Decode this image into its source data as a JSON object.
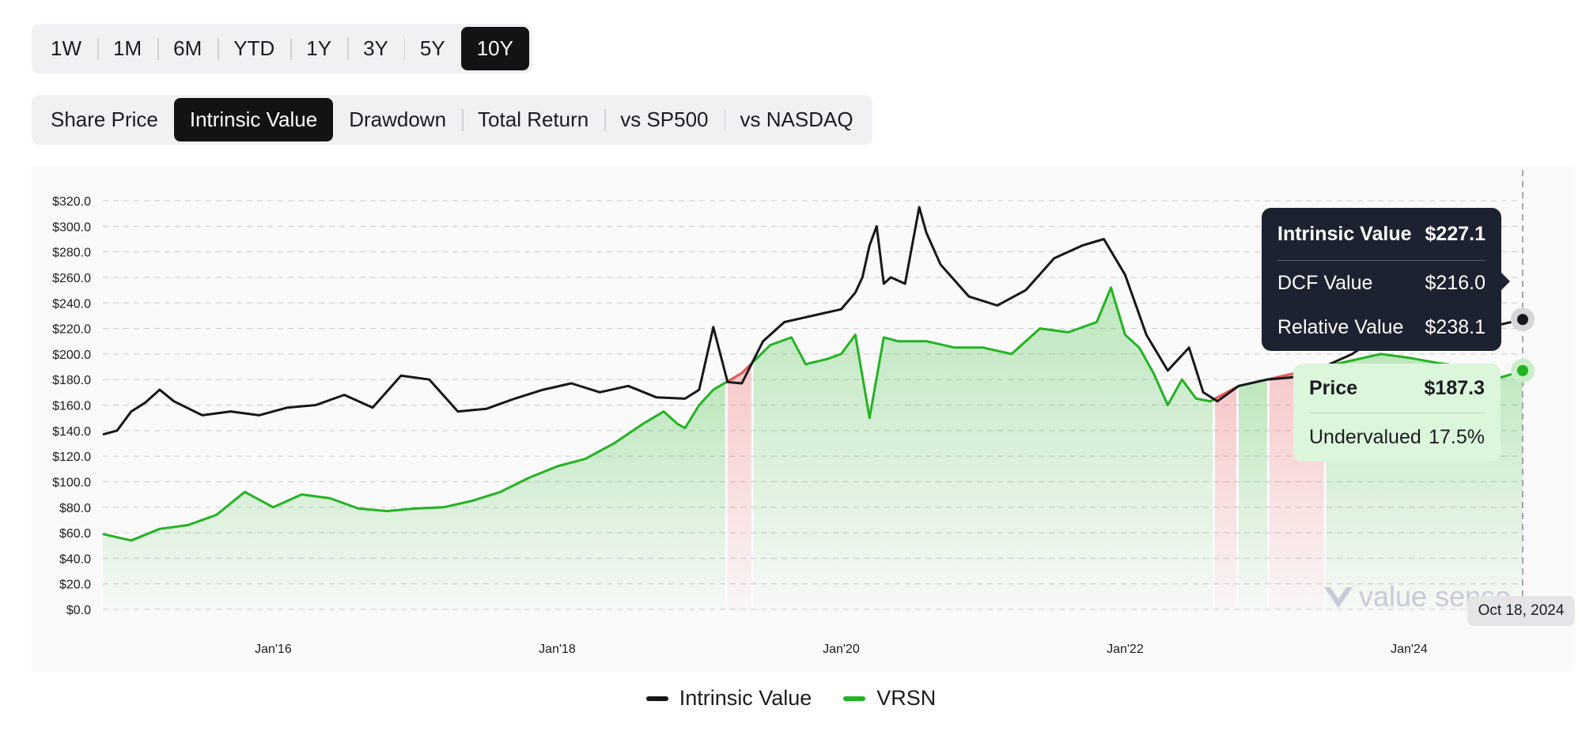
{
  "range_tabs": [
    {
      "label": "1W",
      "active": false
    },
    {
      "label": "1M",
      "active": false
    },
    {
      "label": "6M",
      "active": false
    },
    {
      "label": "YTD",
      "active": false
    },
    {
      "label": "1Y",
      "active": false
    },
    {
      "label": "3Y",
      "active": false
    },
    {
      "label": "5Y",
      "active": false
    },
    {
      "label": "10Y",
      "active": true
    }
  ],
  "view_tabs": [
    {
      "label": "Share Price",
      "active": false
    },
    {
      "label": "Intrinsic Value",
      "active": true
    },
    {
      "label": "Drawdown",
      "active": false
    },
    {
      "label": "Total Return",
      "active": false
    },
    {
      "label": "vs SP500",
      "active": false
    },
    {
      "label": "vs NASDAQ",
      "active": false
    }
  ],
  "tooltip_intrinsic": {
    "title": "Intrinsic Value",
    "title_value": "$227.1",
    "dcf_label": "DCF Value",
    "dcf_value": "$216.0",
    "relative_label": "Relative Value",
    "relative_value": "$238.1"
  },
  "tooltip_price": {
    "title": "Price",
    "title_value": "$187.3",
    "status_label": "Undervalued",
    "status_value": "17.5%"
  },
  "date_badge": "Oct 18, 2024",
  "watermark": "value sense",
  "colors": {
    "intrinsic": "#16171b",
    "price": "#22b322",
    "overvalued": "#f05555",
    "undervalued_fill": "#22b322",
    "overvalued_fill": "#f05555"
  },
  "chart_data": {
    "type": "line",
    "y_ticks": [
      "$0.0",
      "$20.0",
      "$40.0",
      "$60.0",
      "$80.0",
      "$100.0",
      "$120.0",
      "$140.0",
      "$160.0",
      "$180.0",
      "$200.0",
      "$220.0",
      "$240.0",
      "$260.0",
      "$280.0",
      "$300.0",
      "$320.0"
    ],
    "ylim": [
      0,
      320
    ],
    "x_ticks": [
      {
        "label": "Jan'16",
        "year": 2016.0
      },
      {
        "label": "Jan'18",
        "year": 2018.0
      },
      {
        "label": "Jan'20",
        "year": 2020.0
      },
      {
        "label": "Jan'22",
        "year": 2022.0
      },
      {
        "label": "Jan'24",
        "year": 2024.0
      }
    ],
    "xlim": [
      2014.8,
      2024.8
    ],
    "grid": "horizontal dashed",
    "legend": "bottom-center",
    "series": [
      {
        "name": "Intrinsic Value",
        "x": [
          2014.8,
          2014.9,
          2015.0,
          2015.1,
          2015.2,
          2015.3,
          2015.5,
          2015.7,
          2015.9,
          2016.1,
          2016.3,
          2016.5,
          2016.7,
          2016.9,
          2017.1,
          2017.3,
          2017.5,
          2017.7,
          2017.9,
          2018.1,
          2018.3,
          2018.5,
          2018.7,
          2018.9,
          2019.0,
          2019.1,
          2019.2,
          2019.3,
          2019.45,
          2019.6,
          2019.8,
          2020.0,
          2020.1,
          2020.15,
          2020.2,
          2020.25,
          2020.3,
          2020.35,
          2020.45,
          2020.55,
          2020.6,
          2020.7,
          2020.9,
          2021.1,
          2021.3,
          2021.5,
          2021.7,
          2021.85,
          2022.0,
          2022.15,
          2022.3,
          2022.45,
          2022.55,
          2022.65,
          2022.8,
          2023.0,
          2023.2,
          2023.4,
          2023.6,
          2023.8,
          2024.0,
          2024.2,
          2024.4,
          2024.6,
          2024.8
        ],
        "y": [
          137,
          140,
          155,
          162,
          172,
          163,
          152,
          155,
          152,
          158,
          160,
          168,
          158,
          183,
          180,
          155,
          157,
          165,
          172,
          177,
          170,
          175,
          166,
          165,
          172,
          221,
          178,
          177,
          210,
          225,
          230,
          235,
          248,
          260,
          285,
          300,
          255,
          260,
          255,
          315,
          295,
          270,
          245,
          238,
          250,
          275,
          285,
          290,
          262,
          215,
          187,
          205,
          170,
          163,
          175,
          180,
          182,
          190,
          200,
          215,
          220,
          215,
          210,
          222,
          227
        ]
      },
      {
        "name": "VRSN",
        "x": [
          2014.8,
          2015.0,
          2015.2,
          2015.4,
          2015.6,
          2015.8,
          2016.0,
          2016.2,
          2016.4,
          2016.6,
          2016.8,
          2017.0,
          2017.2,
          2017.4,
          2017.6,
          2017.8,
          2018.0,
          2018.2,
          2018.4,
          2018.6,
          2018.75,
          2018.85,
          2018.9,
          2019.0,
          2019.1,
          2019.3,
          2019.5,
          2019.65,
          2019.75,
          2019.9,
          2020.0,
          2020.1,
          2020.2,
          2020.3,
          2020.4,
          2020.6,
          2020.8,
          2021.0,
          2021.2,
          2021.4,
          2021.6,
          2021.8,
          2021.9,
          2022.0,
          2022.1,
          2022.2,
          2022.3,
          2022.4,
          2022.5,
          2022.6,
          2022.8,
          2023.0,
          2023.2,
          2023.4,
          2023.6,
          2023.8,
          2024.0,
          2024.2,
          2024.4,
          2024.6,
          2024.8
        ],
        "y": [
          59,
          54,
          63,
          66,
          74,
          92,
          80,
          90,
          87,
          79,
          77,
          79,
          80,
          85,
          92,
          103,
          112,
          118,
          130,
          145,
          155,
          145,
          142,
          160,
          172,
          185,
          207,
          213,
          192,
          196,
          200,
          215,
          150,
          213,
          210,
          210,
          205,
          205,
          200,
          220,
          217,
          225,
          252,
          215,
          205,
          185,
          160,
          180,
          165,
          163,
          175,
          180,
          185,
          190,
          195,
          200,
          197,
          193,
          190,
          180,
          187
        ]
      }
    ]
  }
}
